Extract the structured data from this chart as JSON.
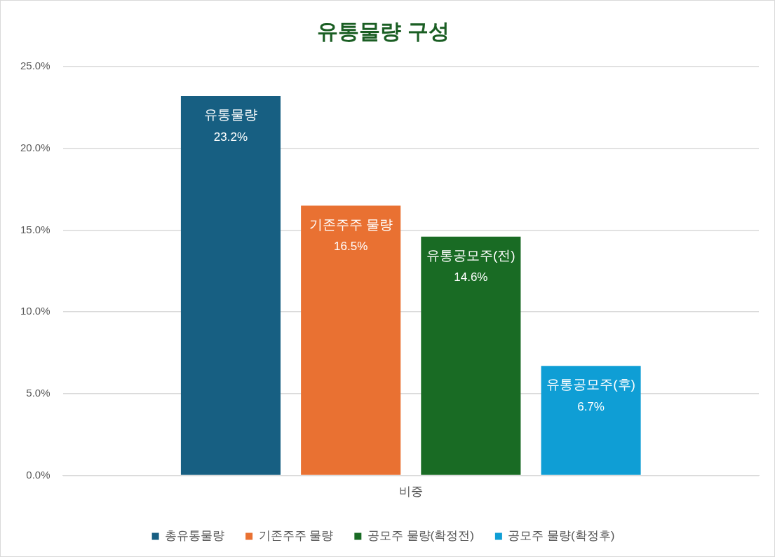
{
  "chart_data": {
    "type": "bar",
    "title": "유통물량 구성",
    "categories": [
      "비중"
    ],
    "series": [
      {
        "name": "총유통물량",
        "color": "#175f82",
        "values": [
          23.2
        ],
        "value_labels": [
          "유통물량\n23.2%"
        ]
      },
      {
        "name": "기존주주 물량",
        "color": "#e97132",
        "values": [
          16.5
        ],
        "value_labels": [
          "기존주주 물량\n16.5%"
        ]
      },
      {
        "name": "공모주 물량(확정전)",
        "color": "#196b24",
        "values": [
          14.6
        ],
        "value_labels": [
          "유통공모주(전)\n14.6%"
        ]
      },
      {
        "name": "공모주 물량(확정후)",
        "color": "#0f9ed5",
        "values": [
          6.7
        ],
        "value_labels": [
          "유통공모주(후)\n6.7%"
        ]
      }
    ],
    "ylim": [
      0,
      25
    ],
    "yticks": [
      {
        "value": 0,
        "label": "0.0%"
      },
      {
        "value": 5,
        "label": "5.0%"
      },
      {
        "value": 10,
        "label": "10.0%"
      },
      {
        "value": 15,
        "label": "15.0%"
      },
      {
        "value": 20,
        "label": "20.0%"
      },
      {
        "value": 25,
        "label": "25.0%"
      }
    ],
    "grid": "y",
    "legend": "bottom"
  }
}
